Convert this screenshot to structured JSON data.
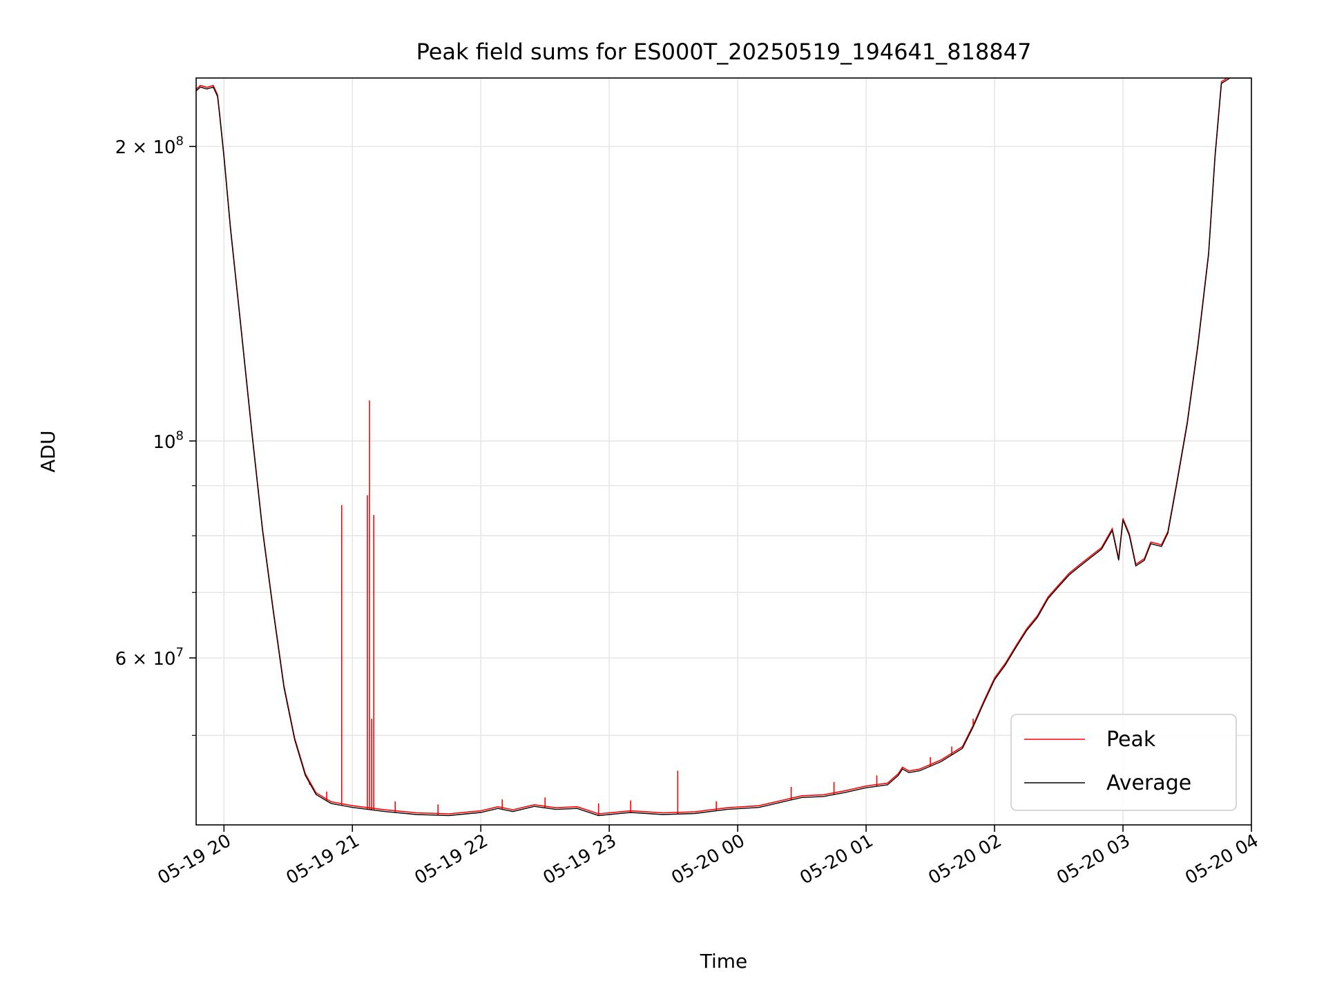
{
  "chart_data": {
    "type": "line",
    "title": "Peak field sums for ES000T_20250519_194641_818847",
    "xlabel": "Time",
    "ylabel": "ADU",
    "y_scale": "log",
    "xlim": [
      "2025-05-19 19:47",
      "2025-05-20 04:00"
    ],
    "ylim": [
      40500000,
      235000000
    ],
    "grid": true,
    "legend_position": "lower-right",
    "x_ticks": [
      {
        "t": "2025-05-19 20:00",
        "label": "05-19 20"
      },
      {
        "t": "2025-05-19 21:00",
        "label": "05-19 21"
      },
      {
        "t": "2025-05-19 22:00",
        "label": "05-19 22"
      },
      {
        "t": "2025-05-19 23:00",
        "label": "05-19 23"
      },
      {
        "t": "2025-05-20 00:00",
        "label": "05-20 00"
      },
      {
        "t": "2025-05-20 01:00",
        "label": "05-20 01"
      },
      {
        "t": "2025-05-20 02:00",
        "label": "05-20 02"
      },
      {
        "t": "2025-05-20 03:00",
        "label": "05-20 03"
      },
      {
        "t": "2025-05-20 04:00",
        "label": "05-20 04"
      }
    ],
    "y_ticks_major": [
      {
        "value": 200000000,
        "base": "2 × 10",
        "exp": "8"
      },
      {
        "value": 100000000,
        "base": "10",
        "exp": "8"
      },
      {
        "value": 60000000,
        "base": "6 × 10",
        "exp": "7"
      }
    ],
    "y_ticks_minor": [
      50000000,
      70000000,
      80000000,
      90000000
    ],
    "series": [
      {
        "name": "Average",
        "color": "#000000",
        "points": [
          [
            "2025-05-19 19:47",
            228000000
          ],
          [
            "2025-05-19 19:49",
            230000000
          ],
          [
            "2025-05-19 19:52",
            229000000
          ],
          [
            "2025-05-19 19:55",
            230000000
          ],
          [
            "2025-05-19 19:57",
            225000000
          ],
          [
            "2025-05-19 19:58",
            215000000
          ],
          [
            "2025-05-19 20:00",
            195000000
          ],
          [
            "2025-05-19 20:03",
            165000000
          ],
          [
            "2025-05-19 20:08",
            130000000
          ],
          [
            "2025-05-19 20:13",
            102000000
          ],
          [
            "2025-05-19 20:18",
            81000000
          ],
          [
            "2025-05-19 20:23",
            67000000
          ],
          [
            "2025-05-19 20:28",
            56000000
          ],
          [
            "2025-05-19 20:33",
            49500000
          ],
          [
            "2025-05-19 20:38",
            45500000
          ],
          [
            "2025-05-19 20:43",
            43500000
          ],
          [
            "2025-05-19 20:50",
            42600000
          ],
          [
            "2025-05-19 21:00",
            42200000
          ],
          [
            "2025-05-19 21:15",
            41800000
          ],
          [
            "2025-05-19 21:30",
            41500000
          ],
          [
            "2025-05-19 21:45",
            41400000
          ],
          [
            "2025-05-19 22:00",
            41700000
          ],
          [
            "2025-05-19 22:08",
            42100000
          ],
          [
            "2025-05-19 22:15",
            41800000
          ],
          [
            "2025-05-19 22:25",
            42300000
          ],
          [
            "2025-05-19 22:35",
            42000000
          ],
          [
            "2025-05-19 22:45",
            42100000
          ],
          [
            "2025-05-19 22:55",
            41400000
          ],
          [
            "2025-05-19 23:10",
            41700000
          ],
          [
            "2025-05-19 23:25",
            41500000
          ],
          [
            "2025-05-19 23:40",
            41600000
          ],
          [
            "2025-05-19 23:55",
            42000000
          ],
          [
            "2025-05-20 00:10",
            42200000
          ],
          [
            "2025-05-20 00:20",
            42700000
          ],
          [
            "2025-05-20 00:30",
            43200000
          ],
          [
            "2025-05-20 00:40",
            43300000
          ],
          [
            "2025-05-20 00:50",
            43700000
          ],
          [
            "2025-05-20 01:00",
            44200000
          ],
          [
            "2025-05-20 01:10",
            44500000
          ],
          [
            "2025-05-20 01:15",
            45500000
          ],
          [
            "2025-05-20 01:17",
            46200000
          ],
          [
            "2025-05-20 01:20",
            45800000
          ],
          [
            "2025-05-20 01:25",
            46000000
          ],
          [
            "2025-05-20 01:35",
            47000000
          ],
          [
            "2025-05-20 01:45",
            48500000
          ],
          [
            "2025-05-20 01:50",
            51000000
          ],
          [
            "2025-05-20 01:55",
            54000000
          ],
          [
            "2025-05-20 02:00",
            57000000
          ],
          [
            "2025-05-20 02:05",
            59000000
          ],
          [
            "2025-05-20 02:10",
            61500000
          ],
          [
            "2025-05-20 02:15",
            64000000
          ],
          [
            "2025-05-20 02:20",
            66000000
          ],
          [
            "2025-05-20 02:25",
            69000000
          ],
          [
            "2025-05-20 02:30",
            71000000
          ],
          [
            "2025-05-20 02:35",
            73000000
          ],
          [
            "2025-05-20 02:40",
            74500000
          ],
          [
            "2025-05-20 02:45",
            76000000
          ],
          [
            "2025-05-20 02:50",
            77500000
          ],
          [
            "2025-05-20 02:55",
            81000000
          ],
          [
            "2025-05-20 02:58",
            75500000
          ],
          [
            "2025-05-20 03:00",
            83000000
          ],
          [
            "2025-05-20 03:03",
            80000000
          ],
          [
            "2025-05-20 03:06",
            74500000
          ],
          [
            "2025-05-20 03:10",
            75500000
          ],
          [
            "2025-05-20 03:13",
            78500000
          ],
          [
            "2025-05-20 03:18",
            78000000
          ],
          [
            "2025-05-20 03:21",
            80500000
          ],
          [
            "2025-05-20 03:25",
            90000000
          ],
          [
            "2025-05-20 03:30",
            104000000
          ],
          [
            "2025-05-20 03:35",
            125000000
          ],
          [
            "2025-05-20 03:40",
            155000000
          ],
          [
            "2025-05-20 03:43",
            195000000
          ],
          [
            "2025-05-20 03:46",
            232000000
          ],
          [
            "2025-05-20 03:50",
            235000000
          ],
          [
            "2025-05-20 04:00",
            235000000
          ]
        ]
      },
      {
        "name": "Peak",
        "color": "#ff0000",
        "spikes": [
          [
            "2025-05-19 20:55",
            86000000
          ],
          [
            "2025-05-19 21:07",
            88000000
          ],
          [
            "2025-05-19 21:08",
            110000000
          ],
          [
            "2025-05-19 21:09",
            52000000
          ],
          [
            "2025-05-19 21:10",
            84000000
          ],
          [
            "2025-05-19 23:32",
            46000000
          ],
          [
            "2025-05-19 20:40",
            44500000
          ],
          [
            "2025-05-19 20:48",
            43800000
          ],
          [
            "2025-05-19 21:20",
            42800000
          ],
          [
            "2025-05-19 21:40",
            42500000
          ],
          [
            "2025-05-19 22:10",
            43000000
          ],
          [
            "2025-05-19 22:30",
            43200000
          ],
          [
            "2025-05-19 22:55",
            42600000
          ],
          [
            "2025-05-19 23:10",
            42900000
          ],
          [
            "2025-05-19 23:50",
            42800000
          ],
          [
            "2025-05-20 00:25",
            44300000
          ],
          [
            "2025-05-20 00:45",
            44800000
          ],
          [
            "2025-05-20 01:05",
            45500000
          ],
          [
            "2025-05-20 01:30",
            47500000
          ],
          [
            "2025-05-20 01:40",
            48700000
          ],
          [
            "2025-05-20 01:50",
            52000000
          ]
        ]
      }
    ]
  }
}
